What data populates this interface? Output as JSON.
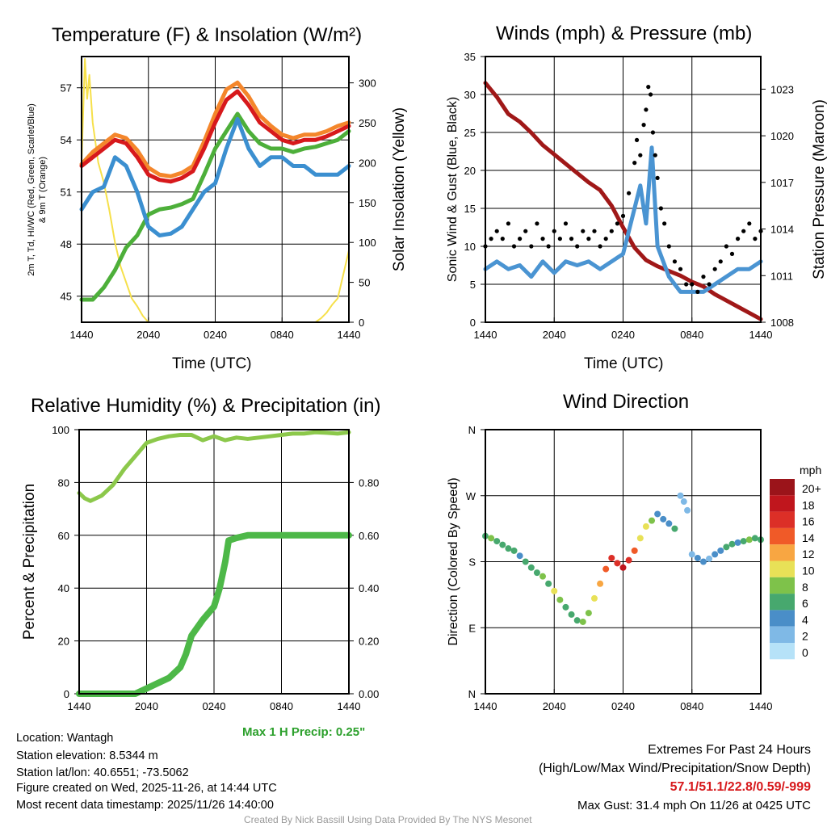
{
  "chart_data": [
    {
      "id": "temp",
      "type": "line",
      "title": "Temperature (F) & Insolation (W/m²)",
      "xlabel": "Time (UTC)",
      "ylabel": "2m T, Td, HI/WC (Red, Green, Scarlet/Blue) & 9m T (Orange)",
      "ylabel2": "Solar Insolation (Yellow)",
      "xticks": [
        "1440",
        "2040",
        "0240",
        "0840",
        "1440"
      ],
      "yticks": [
        45,
        48,
        51,
        54,
        57
      ],
      "y2ticks": [
        0,
        50,
        100,
        150,
        200,
        250,
        300
      ],
      "xlim": [
        0,
        24
      ],
      "ylim": [
        43.5,
        58.8
      ],
      "y2lim": [
        0,
        333
      ],
      "series": [
        {
          "name": "9m T",
          "color": "#f4862b",
          "axis": "left",
          "x": [
            0,
            1,
            2,
            3,
            4,
            5,
            6,
            7,
            8,
            9,
            10,
            11,
            12,
            13,
            14,
            15,
            16,
            17,
            18,
            19,
            20,
            21,
            22,
            23,
            24
          ],
          "y": [
            52.6,
            53.3,
            53.8,
            54.3,
            54.1,
            53.4,
            52.4,
            52.0,
            51.9,
            52.1,
            52.5,
            53.9,
            55.5,
            56.9,
            57.3,
            56.5,
            55.4,
            54.8,
            54.3,
            54.1,
            54.3,
            54.3,
            54.5,
            54.8,
            55.0
          ]
        },
        {
          "name": "2m T",
          "color": "#d7191c",
          "axis": "left",
          "x": [
            0,
            1,
            2,
            3,
            4,
            5,
            6,
            7,
            8,
            9,
            10,
            11,
            12,
            13,
            14,
            15,
            16,
            17,
            18,
            19,
            20,
            21,
            22,
            23,
            24
          ],
          "y": [
            52.5,
            53.0,
            53.5,
            54.0,
            53.8,
            53.0,
            52.0,
            51.7,
            51.6,
            51.8,
            52.2,
            53.5,
            55.0,
            56.3,
            56.8,
            56.0,
            55.0,
            54.5,
            54.0,
            53.8,
            54.0,
            54.0,
            54.2,
            54.5,
            54.8
          ]
        },
        {
          "name": "Td",
          "color": "#4daf3a",
          "axis": "left",
          "x": [
            0,
            1,
            2,
            3,
            4,
            5,
            6,
            7,
            8,
            9,
            10,
            11,
            12,
            13,
            14,
            15,
            16,
            17,
            18,
            19,
            20,
            21,
            22,
            23,
            24
          ],
          "y": [
            44.8,
            44.8,
            45.5,
            46.5,
            47.8,
            48.5,
            49.7,
            50.0,
            50.1,
            50.3,
            50.6,
            52.0,
            53.5,
            54.5,
            55.5,
            54.5,
            53.8,
            53.5,
            53.5,
            53.3,
            53.5,
            53.6,
            53.8,
            54.0,
            54.5
          ]
        },
        {
          "name": "HI/WC",
          "color": "#3b8fd0",
          "axis": "left",
          "x": [
            0,
            1,
            2,
            3,
            4,
            5,
            6,
            7,
            8,
            9,
            10,
            11,
            12,
            13,
            14,
            15,
            16,
            17,
            18,
            19,
            20,
            21,
            22,
            23,
            24
          ],
          "y": [
            50.0,
            51.0,
            51.3,
            53.0,
            52.5,
            51.0,
            49.0,
            48.5,
            48.6,
            49.0,
            50.0,
            51.0,
            51.5,
            53.5,
            55.2,
            53.5,
            52.5,
            53.0,
            53.0,
            52.5,
            52.5,
            52.0,
            52.0,
            52.0,
            52.5
          ]
        },
        {
          "name": "Solar",
          "color": "#f6e04a",
          "axis": "right",
          "x": [
            0,
            0.3,
            0.5,
            0.7,
            1,
            1.5,
            2,
            2.5,
            3,
            3.5,
            4,
            4.5,
            5,
            5.5,
            6,
            21,
            21.5,
            22,
            22.5,
            23,
            23.5,
            24
          ],
          "y": [
            200,
            330,
            280,
            310,
            250,
            200,
            175,
            140,
            100,
            70,
            50,
            30,
            20,
            8,
            0,
            0,
            5,
            12,
            22,
            30,
            60,
            90
          ]
        }
      ]
    },
    {
      "id": "wind",
      "type": "line",
      "title": "Winds (mph) & Pressure (mb)",
      "xlabel": "Time (UTC)",
      "ylabel": "Sonic Wind & Gust (Blue, Black)",
      "ylabel2": "Station Pressure (Maroon)",
      "xticks": [
        "1440",
        "2040",
        "0240",
        "0840",
        "1440"
      ],
      "yticks": [
        0,
        5,
        10,
        15,
        20,
        25,
        30,
        35
      ],
      "y2ticks": [
        1008,
        1011,
        1014,
        1017,
        1020,
        1023
      ],
      "xlim": [
        0,
        24
      ],
      "ylim": [
        0,
        35
      ],
      "y2lim": [
        1008,
        1025.1
      ],
      "series": [
        {
          "name": "Pressure",
          "color": "#a01818",
          "axis": "right",
          "x": [
            0,
            1,
            2,
            3,
            4,
            5,
            6,
            7,
            8,
            9,
            10,
            11,
            12,
            13,
            14,
            15,
            16,
            17,
            18,
            19,
            20,
            21,
            22,
            23,
            24
          ],
          "y": [
            1023.4,
            1022.5,
            1021.4,
            1020.9,
            1020.2,
            1019.4,
            1018.8,
            1018.2,
            1017.6,
            1017.0,
            1016.5,
            1015.5,
            1014.1,
            1012.8,
            1012.0,
            1011.6,
            1011.3,
            1011.0,
            1010.6,
            1010.3,
            1009.8,
            1009.4,
            1009.0,
            1008.6,
            1008.2
          ]
        },
        {
          "name": "Sonic Wind",
          "color": "#4a94d2",
          "axis": "left",
          "x": [
            0,
            1,
            2,
            3,
            4,
            5,
            6,
            7,
            8,
            9,
            10,
            11,
            12,
            13,
            13.5,
            14,
            14.5,
            15,
            16,
            17,
            18,
            19,
            20,
            21,
            22,
            23,
            24
          ],
          "y": [
            7,
            8,
            7,
            7.5,
            6,
            8,
            6.5,
            8,
            7.5,
            8,
            7,
            8,
            9,
            15,
            18,
            13,
            23,
            10,
            6,
            4,
            4,
            4,
            5,
            6,
            7,
            7,
            8
          ]
        },
        {
          "name": "Gust",
          "color": "#000000",
          "axis": "left",
          "type": "scatter",
          "x": [
            0,
            0.5,
            1,
            1.5,
            2,
            2.5,
            3,
            3.5,
            4,
            4.5,
            5,
            5.5,
            6,
            6.5,
            7,
            7.5,
            8,
            8.5,
            9,
            9.5,
            10,
            10.5,
            11,
            11.5,
            12,
            12.5,
            13,
            13.2,
            13.5,
            13.8,
            14,
            14.2,
            14.4,
            14.6,
            14.8,
            15,
            15.3,
            15.6,
            16,
            16.5,
            17,
            17.5,
            18,
            18.5,
            19,
            19.5,
            20,
            20.5,
            21,
            21.5,
            22,
            22.5,
            23,
            23.5,
            24
          ],
          "y": [
            10,
            11,
            12,
            11,
            13,
            10,
            11,
            12,
            10,
            13,
            11,
            10,
            12,
            11,
            13,
            11,
            10,
            12,
            11,
            12,
            10,
            11,
            12,
            13,
            14,
            17,
            21,
            24,
            22,
            26,
            28,
            31,
            30,
            25,
            22,
            19,
            15,
            13,
            10,
            8,
            7,
            5,
            5,
            4,
            6,
            5,
            7,
            8,
            10,
            9,
            11,
            12,
            13,
            11,
            12
          ]
        }
      ]
    },
    {
      "id": "rh",
      "type": "line",
      "title": "Relative Humidity (%) & Precipitation (in)",
      "xlabel": "",
      "ylabel": "Percent & Precipitation",
      "xticks": [
        "1440",
        "2040",
        "0240",
        "0840",
        "1440"
      ],
      "yticks": [
        0,
        20,
        40,
        60,
        80,
        100
      ],
      "y2ticks": [
        "0.00",
        "0.20",
        "0.40",
        "0.60",
        "0.80"
      ],
      "xlim": [
        0,
        24
      ],
      "ylim": [
        0,
        100
      ],
      "y2lim": [
        0,
        1
      ],
      "series": [
        {
          "name": "RH",
          "color": "#8cc84b",
          "axis": "left",
          "x": [
            0,
            0.5,
            1,
            2,
            3,
            4,
            5,
            6,
            7,
            8,
            9,
            10,
            11,
            12,
            13,
            14,
            15,
            16,
            17,
            18,
            19,
            20,
            21,
            22,
            23,
            24
          ],
          "y": [
            76,
            74,
            73,
            75,
            79,
            85,
            90,
            95,
            96.5,
            97.5,
            98,
            98,
            96,
            97.5,
            96,
            97,
            96.5,
            97,
            97.5,
            98,
            98.5,
            98.5,
            99,
            98.8,
            98.5,
            99
          ]
        },
        {
          "name": "Precipitation",
          "color": "#4db848",
          "axis": "right",
          "x": [
            0,
            5,
            6,
            7,
            8,
            9,
            9.5,
            10,
            11,
            12,
            12.5,
            13,
            13.3,
            14,
            15,
            24
          ],
          "y": [
            0,
            0,
            0.02,
            0.04,
            0.06,
            0.1,
            0.15,
            0.22,
            0.28,
            0.33,
            0.4,
            0.5,
            0.58,
            0.59,
            0.6,
            0.6
          ]
        }
      ]
    },
    {
      "id": "dir",
      "type": "scatter",
      "title": "Wind Direction",
      "ylabel": "Direction (Colored By Speed)",
      "xticks": [
        "1440",
        "2040",
        "0240",
        "0840",
        "1440"
      ],
      "yticks": [
        "N",
        "E",
        "S",
        "W",
        "N"
      ],
      "xlim": [
        0,
        24
      ],
      "ylim": [
        0,
        360
      ],
      "colorbar": {
        "title": "mph",
        "labels": [
          "20+",
          "18",
          "16",
          "14",
          "12",
          "10",
          "8",
          "6",
          "4",
          "2",
          "0"
        ],
        "colors": [
          "#9b141a",
          "#c0161d",
          "#dc2f27",
          "#f05a28",
          "#f8a642",
          "#e8e157",
          "#7ec24a",
          "#47a86e",
          "#4a8ec8",
          "#7fb9e6",
          "#b6e2f8"
        ]
      },
      "points": {
        "x": [
          0,
          0.5,
          1,
          1.5,
          2,
          2.5,
          3,
          3.5,
          4,
          4.5,
          5,
          5.5,
          6,
          6.5,
          7,
          7.5,
          8,
          8.5,
          9,
          9.5,
          10,
          10.5,
          11,
          11.5,
          12,
          12.5,
          13,
          13.5,
          14,
          14.5,
          15,
          15.5,
          16,
          16.5,
          17,
          17.3,
          17.6,
          18,
          18.5,
          19,
          19.5,
          20,
          20.5,
          21,
          21.5,
          22,
          22.5,
          23,
          23.5,
          24
        ],
        "y": [
          215,
          212,
          208,
          203,
          198,
          195,
          188,
          180,
          172,
          165,
          160,
          150,
          140,
          128,
          118,
          108,
          100,
          98,
          110,
          130,
          150,
          170,
          185,
          178,
          172,
          182,
          195,
          212,
          228,
          236,
          245,
          238,
          232,
          225,
          270,
          262,
          250,
          190,
          185,
          180,
          184,
          190,
          195,
          200,
          204,
          206,
          208,
          210,
          212,
          210
        ],
        "speed": [
          7,
          8,
          7,
          6,
          6,
          7,
          5,
          6,
          6,
          7,
          8,
          7,
          10,
          8,
          7,
          6,
          7,
          9,
          8,
          10,
          12,
          15,
          16,
          17,
          18,
          16,
          14,
          11,
          10,
          8,
          4,
          5,
          4,
          6,
          2,
          2,
          3,
          3,
          4,
          4,
          3,
          5,
          4,
          6,
          6,
          5,
          7,
          8,
          6,
          7
        ]
      }
    }
  ],
  "footer": {
    "location": "Location: Wantagh",
    "elevation": "Station elevation: 8.5344 m",
    "latlon": "Station lat/lon: 40.6551; -73.5062",
    "created": "Figure created on Wed, 2025-11-26, at 14:44 UTC",
    "recent": "Most recent data timestamp: 2025/11/26 14:40:00",
    "max_precip": "Max 1 H Precip: 0.25\"",
    "extremes_title": "Extremes For Past 24 Hours",
    "extremes_sub": "(High/Low/Max Wind/Precipitation/Snow Depth)",
    "extremes_values": "57.1/51.1/22.8/0.59/-999",
    "max_gust": "Max Gust: 31.4 mph On 11/26 at 0425 UTC",
    "credit": "Created By Nick Bassill Using Data Provided By The NYS Mesonet"
  }
}
